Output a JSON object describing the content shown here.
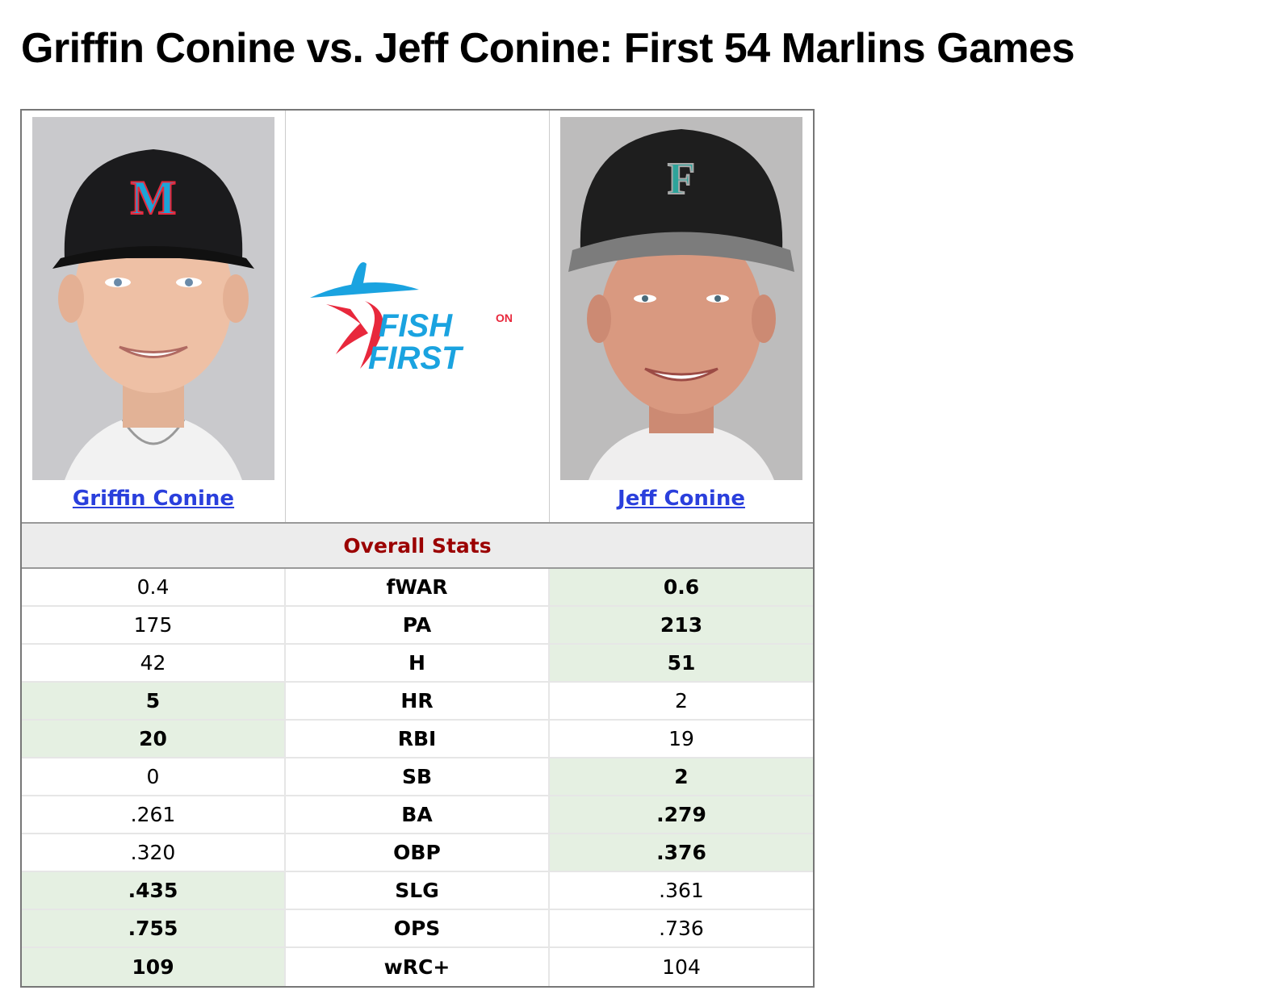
{
  "title": "Griffin Conine vs. Jeff Conine: First 54 Marlins Games",
  "players": {
    "left": {
      "name": "Griffin Conine"
    },
    "right": {
      "name": "Jeff Conine"
    }
  },
  "logo": {
    "line1": "FISH",
    "line2": "FIRST",
    "small": "ON"
  },
  "section_header": "Overall Stats",
  "colors": {
    "winner_bg": "#e5f0e2",
    "section_header_text": "#9b0000",
    "link": "#2a3fdc",
    "logo_blue": "#1aa3e0",
    "logo_red": "#e8283c"
  },
  "stats": [
    {
      "label": "fWAR",
      "left": "0.4",
      "right": "0.6",
      "winner": "right"
    },
    {
      "label": "PA",
      "left": "175",
      "right": "213",
      "winner": "right"
    },
    {
      "label": "H",
      "left": "42",
      "right": "51",
      "winner": "right"
    },
    {
      "label": "HR",
      "left": "5",
      "right": "2",
      "winner": "left"
    },
    {
      "label": "RBI",
      "left": "20",
      "right": "19",
      "winner": "left"
    },
    {
      "label": "SB",
      "left": "0",
      "right": "2",
      "winner": "right"
    },
    {
      "label": "BA",
      "left": ".261",
      "right": ".279",
      "winner": "right"
    },
    {
      "label": "OBP",
      "left": ".320",
      "right": ".376",
      "winner": "right"
    },
    {
      "label": "SLG",
      "left": ".435",
      "right": ".361",
      "winner": "left"
    },
    {
      "label": "OPS",
      "left": ".755",
      "right": ".736",
      "winner": "left"
    },
    {
      "label": "wRC+",
      "left": "109",
      "right": "104",
      "winner": "left"
    }
  ]
}
